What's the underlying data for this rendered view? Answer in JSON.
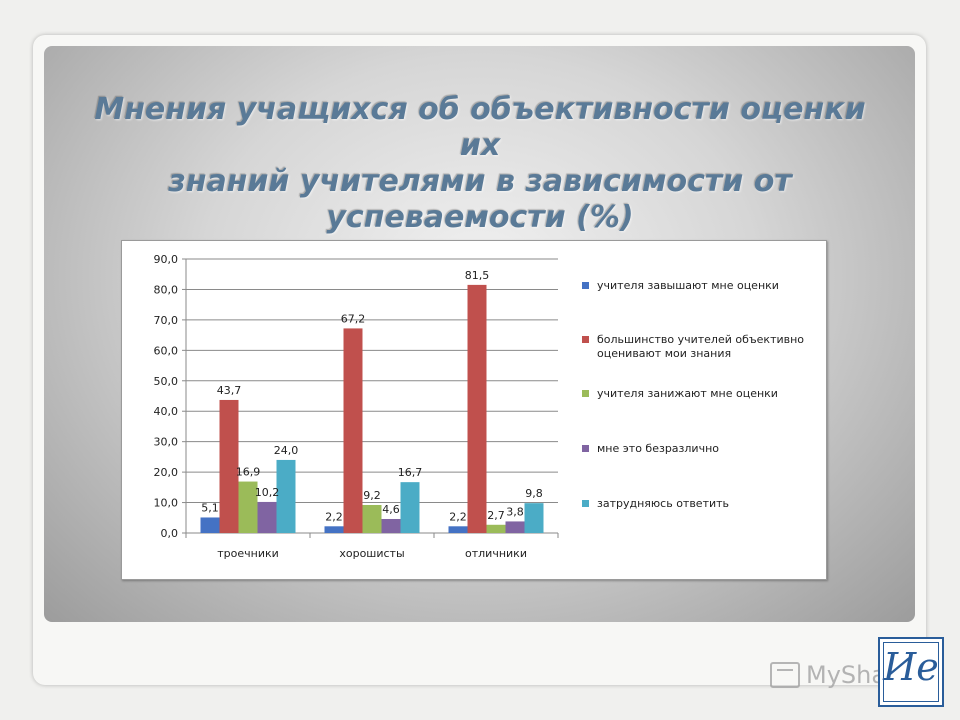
{
  "slide": {
    "title_line1": "Мнения учащихся об объективности оценки их",
    "title_line2": "знаний учителями в зависимости от",
    "title_line3": "успеваемости (%)"
  },
  "colors": {
    "series": [
      "#4472c4",
      "#c0504d",
      "#9bbb59",
      "#8064a2",
      "#4bacc6"
    ]
  },
  "chart_data": {
    "type": "bar",
    "title": "",
    "xlabel": "",
    "ylabel": "",
    "ylim": [
      0,
      90
    ],
    "yticks": [
      "0,0",
      "10,0",
      "20,0",
      "30,0",
      "40,0",
      "50,0",
      "60,0",
      "70,0",
      "80,0",
      "90,0"
    ],
    "grid": true,
    "legend_position": "right",
    "categories": [
      "троечники",
      "хорошисты",
      "отличники"
    ],
    "series": [
      {
        "name": "учителя завышают мне оценки",
        "values": [
          5.1,
          2.2,
          2.2
        ],
        "labels": [
          "5,1",
          "2,2",
          "2,2"
        ]
      },
      {
        "name": "большинство учителей объективно оценивают мои знания",
        "values": [
          43.7,
          67.2,
          81.5
        ],
        "labels": [
          "43,7",
          "67,2",
          "81,5"
        ]
      },
      {
        "name": "учителя занижают мне оценки",
        "values": [
          16.9,
          9.2,
          2.7
        ],
        "labels": [
          "16,9",
          "9,2",
          "2,7"
        ]
      },
      {
        "name": "мне это безразлично",
        "values": [
          10.2,
          4.6,
          3.8
        ],
        "labels": [
          "10,2",
          "4,6",
          "3,8"
        ]
      },
      {
        "name": "затрудняюсь ответить",
        "values": [
          24.0,
          16.7,
          9.8
        ],
        "labels": [
          "24,0",
          "16,7",
          "9,8"
        ]
      }
    ]
  },
  "watermark": {
    "logo_text": "MyShared"
  },
  "seal": {
    "glyph": "Ие"
  }
}
